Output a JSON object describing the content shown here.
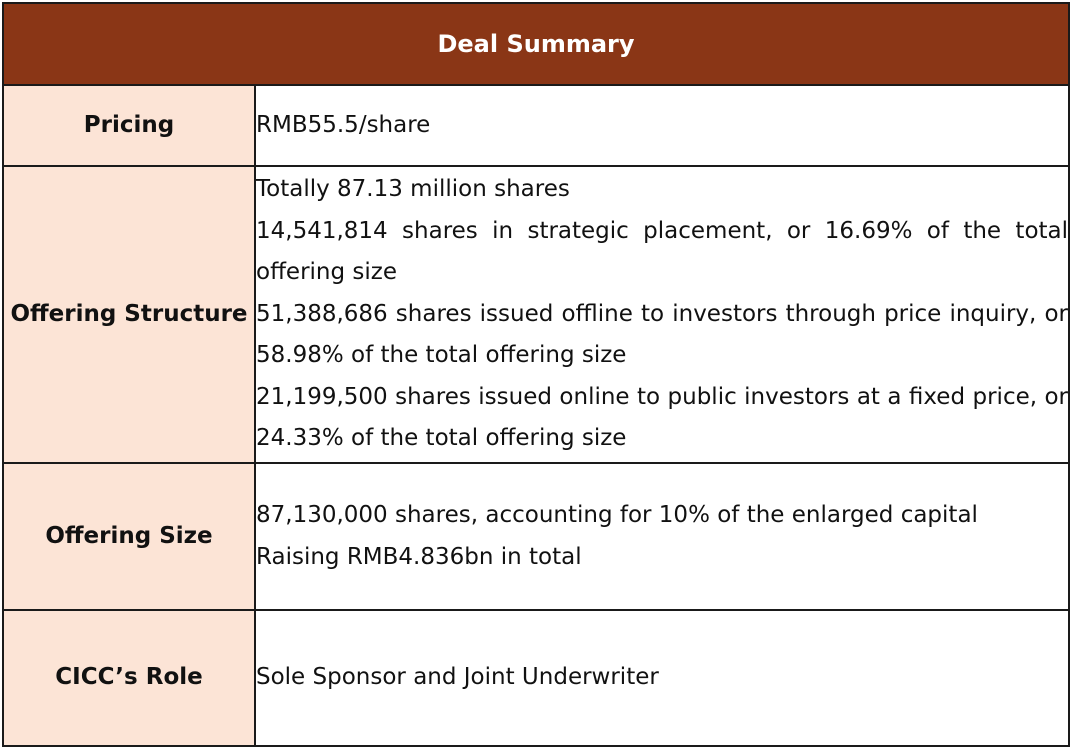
{
  "title": "Deal Summary",
  "rows": {
    "pricing": {
      "label": "Pricing",
      "lines": [
        "RMB55.5/share"
      ]
    },
    "offering_structure": {
      "label": "Offering Structure",
      "lines": [
        "Totally 87.13 million shares",
        "14,541,814 shares in strategic placement, or 16.69% of the total offering size",
        "51,388,686 shares issued offline to investors through price inquiry, or 58.98% of the total offering size",
        "21,199,500 shares issued online to public investors at a fixed price, or 24.33% of the total offering size"
      ]
    },
    "offering_size": {
      "label": "Offering Size",
      "lines": [
        "87,130,000 shares, accounting for 10% of the enlarged capital",
        "Raising RMB4.836bn in total"
      ]
    },
    "cicc_role": {
      "label": "CICC’s Role",
      "lines": [
        "Sole Sponsor and Joint Underwriter"
      ]
    }
  },
  "colors": {
    "header_background": "#8a3616",
    "header_text": "#ffffff",
    "label_background": "#fce4d6",
    "border": "#1a1a1a"
  }
}
